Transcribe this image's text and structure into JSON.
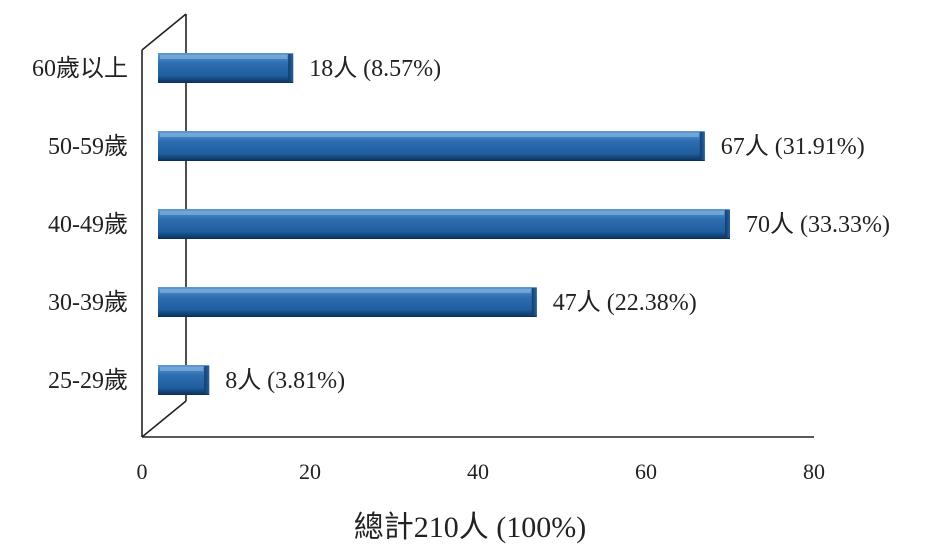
{
  "chart_data": {
    "type": "bar",
    "orientation": "horizontal",
    "style": "3d",
    "categories": [
      "60歲以上",
      "50-59歲",
      "40-49歲",
      "30-39歲",
      "25-29歲"
    ],
    "values": [
      18,
      67,
      70,
      47,
      8
    ],
    "data_labels": [
      "18人 (8.57%)",
      "67人 (31.91%)",
      "70人 (33.33%)",
      "47人 (22.38%)",
      "8人 (3.81%)"
    ],
    "xlim": [
      0,
      80
    ],
    "xticks": [
      "0",
      "20",
      "40",
      "60",
      "80"
    ],
    "xlabel": "總計210人 (100%)",
    "grid": false,
    "legend": "none",
    "bar_color": "#1f5fa0",
    "bar_highlight": "#5f9ad2",
    "bar_shadow": "#0b2f57"
  }
}
